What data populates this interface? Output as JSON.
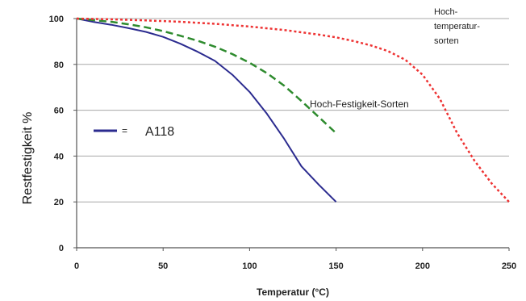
{
  "chart_data": {
    "type": "line",
    "xlabel": "Temperatur (°C)",
    "ylabel": "Restfestigkeit %",
    "xlim": [
      0,
      250
    ],
    "ylim": [
      0,
      100
    ],
    "xticks": [
      0,
      50,
      100,
      150,
      200,
      250
    ],
    "yticks": [
      0,
      20,
      40,
      60,
      80,
      100
    ],
    "grid": "horizontal",
    "legend": {
      "entry": "A118",
      "marker": "=",
      "color": "#2b2b8f"
    },
    "series": [
      {
        "name": "A118",
        "color": "#2b2b8f",
        "dash": "solid",
        "x": [
          0,
          10,
          20,
          30,
          40,
          50,
          60,
          70,
          80,
          90,
          100,
          110,
          120,
          130,
          140,
          150
        ],
        "y": [
          100,
          98.5,
          97.3,
          95.8,
          94.2,
          92,
          89,
          85.5,
          81.5,
          75.5,
          68,
          58.5,
          47.5,
          35.5,
          27.5,
          20
        ]
      },
      {
        "name": "Hoch-Festigkeit-Sorten",
        "color": "#2e8b2e",
        "dash": "dashed",
        "x": [
          0,
          10,
          20,
          30,
          40,
          50,
          60,
          70,
          80,
          90,
          100,
          110,
          120,
          130,
          140,
          150
        ],
        "y": [
          100,
          99.3,
          98.6,
          97.5,
          96.2,
          94.5,
          92.5,
          90.3,
          87.7,
          84.5,
          80.7,
          76.2,
          70.7,
          64,
          57,
          50
        ]
      },
      {
        "name": "Hoch-temperatur-sorten",
        "color": "#ee3333",
        "dash": "dotted",
        "x": [
          0,
          20,
          40,
          60,
          80,
          100,
          120,
          140,
          150,
          160,
          170,
          180,
          190,
          200,
          210,
          220,
          230,
          240,
          250
        ],
        "y": [
          100,
          99.7,
          99.2,
          98.6,
          97.7,
          96.5,
          95,
          93,
          91.8,
          90.2,
          88.3,
          85.8,
          82,
          75.5,
          65,
          50,
          38,
          28,
          20
        ]
      }
    ],
    "annotations": [
      {
        "text": "Hoch-Festigkeit-Sorten"
      },
      {
        "lines": [
          "Hoch-",
          "temperatur-",
          "sorten"
        ]
      }
    ]
  }
}
